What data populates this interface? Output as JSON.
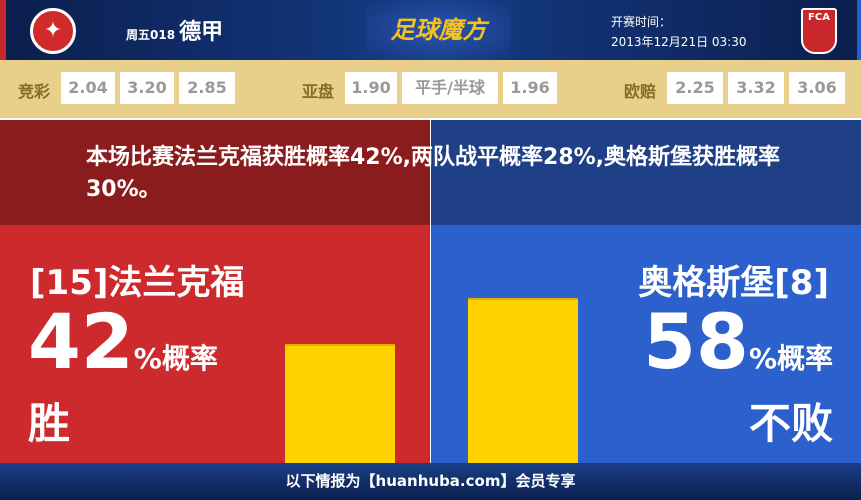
{
  "header": {
    "home_logo": "Eintracht Frankfurt",
    "away_logo": "FCA",
    "match_no": "周五018",
    "league": "德甲",
    "brand": "足球魔方",
    "time_label": "开赛时间：",
    "time_value": "2013年12月21日 03:30"
  },
  "odds": {
    "jc_label": "竞彩",
    "jc": [
      "2.04",
      "3.20",
      "2.85"
    ],
    "yp_label": "亚盘",
    "yp": [
      "1.90",
      "平手/半球",
      "1.96"
    ],
    "op_label": "欧赔",
    "op": [
      "2.25",
      "3.32",
      "3.06"
    ]
  },
  "summary": "本场比赛法兰克福获胜概率42%,两队战平概率28%,奥格斯堡获胜概率30%。",
  "home": {
    "name": "[15]法兰克福",
    "pct": "42",
    "unit": "%概率",
    "outcome": "胜",
    "value": 42
  },
  "away": {
    "name": "奥格斯堡[8]",
    "pct": "58",
    "unit": "%概率",
    "outcome": "不败",
    "value": 58
  },
  "colors": {
    "home": "#cc2a2c",
    "away": "#2c60cc",
    "bar": "#ffd200"
  },
  "footer": "以下情报为【huanhuba.com】会员专享"
}
